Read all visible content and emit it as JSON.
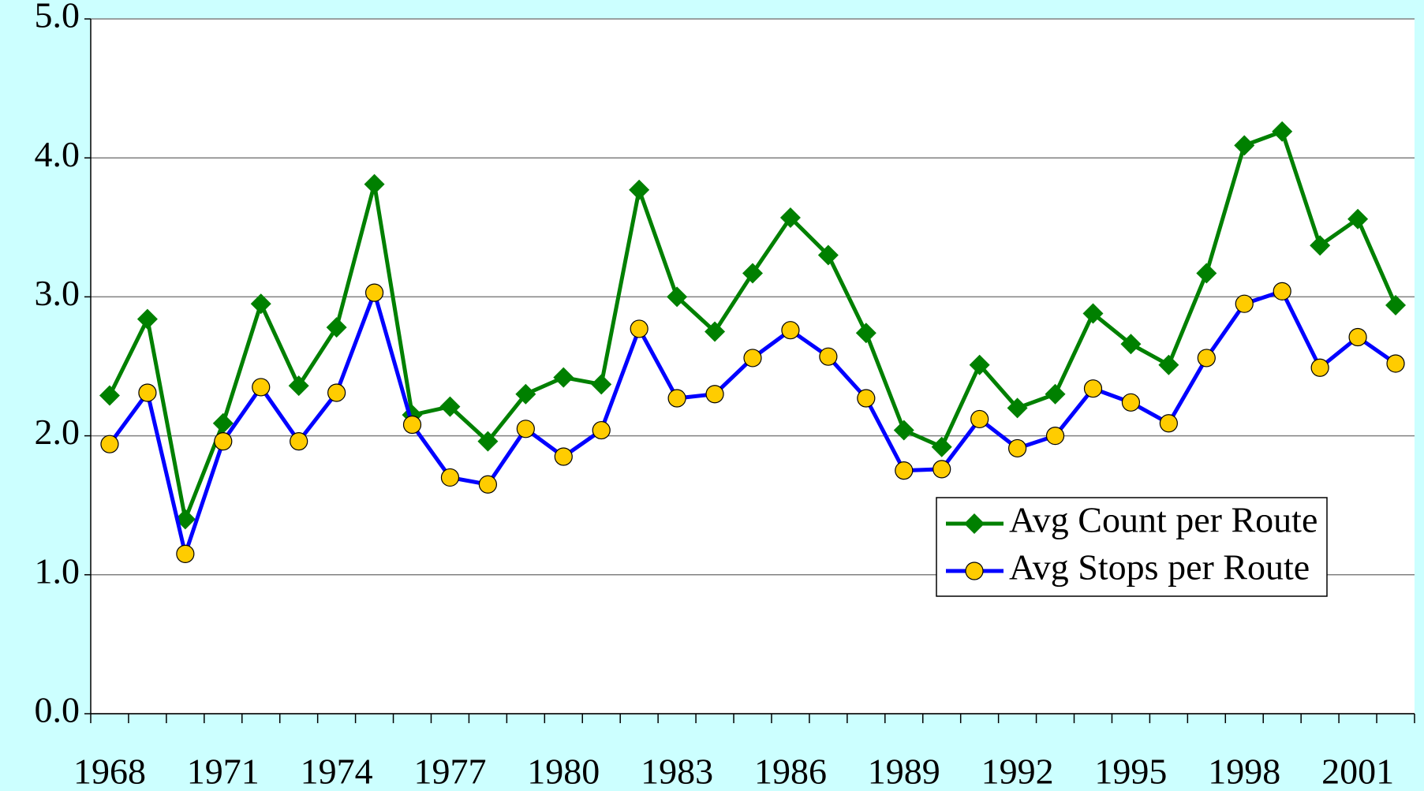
{
  "chart_data": {
    "type": "line",
    "categories": [
      "1968",
      null,
      null,
      "1971",
      null,
      null,
      "1974",
      null,
      null,
      "1977",
      null,
      null,
      "1980",
      null,
      null,
      "1983",
      null,
      null,
      "1986",
      null,
      null,
      "1989",
      null,
      null,
      "1992",
      null,
      null,
      "1995",
      null,
      null,
      "1998",
      null,
      null,
      "2001",
      null
    ],
    "series": [
      {
        "name": "Avg Count per Route",
        "color": "#008000",
        "marker": "diamond",
        "values": [
          2.29,
          2.84,
          1.4,
          2.09,
          2.95,
          2.36,
          2.78,
          3.81,
          2.15,
          2.21,
          1.96,
          2.3,
          2.42,
          2.37,
          3.77,
          3.0,
          2.75,
          3.17,
          3.57,
          3.3,
          2.74,
          2.04,
          1.92,
          2.51,
          2.2,
          2.3,
          2.88,
          2.66,
          2.51,
          3.17,
          4.09,
          4.19,
          3.37,
          3.56,
          2.94
        ]
      },
      {
        "name": "Avg Stops per Route",
        "color": "#0000ff",
        "marker": "circle",
        "values": [
          1.94,
          2.31,
          1.15,
          1.96,
          2.35,
          1.96,
          2.31,
          3.03,
          2.08,
          1.7,
          1.65,
          2.05,
          1.85,
          2.04,
          2.77,
          2.27,
          2.3,
          2.56,
          2.76,
          2.57,
          2.27,
          1.75,
          1.76,
          2.12,
          1.91,
          2.0,
          2.34,
          2.24,
          2.09,
          2.56,
          2.95,
          3.04,
          2.49,
          2.71,
          2.52
        ]
      }
    ],
    "ylim": [
      0,
      5
    ],
    "yticks": [
      {
        "value": 0,
        "label": "0.0"
      },
      {
        "value": 1,
        "label": "1.0"
      },
      {
        "value": 2,
        "label": "2.0"
      },
      {
        "value": 3,
        "label": "3.0"
      },
      {
        "value": 4,
        "label": "4.0"
      },
      {
        "value": 5,
        "label": "5.0"
      }
    ],
    "grid": true,
    "legend": "lower right"
  }
}
